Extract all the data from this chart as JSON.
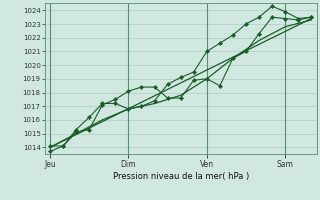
{
  "background_color": "#d0e8e0",
  "plot_bg": "#d0e8e0",
  "grid_color": "#b0ccc4",
  "grid_major_color": "#8aada0",
  "line_color": "#1a5c28",
  "ylabel": "Pression niveau de la mer( hPa )",
  "ylim": [
    1013.5,
    1024.5
  ],
  "yticks": [
    1014,
    1015,
    1016,
    1017,
    1018,
    1019,
    1020,
    1021,
    1022,
    1023,
    1024
  ],
  "xtick_labels": [
    "Jeu",
    "Dim",
    "Ven",
    "Sam"
  ],
  "xtick_positions": [
    0,
    3,
    6,
    9
  ],
  "vline_color": "#5a8a78",
  "series1": {
    "x": [
      0.0,
      0.5,
      1.0,
      1.5,
      2.0,
      2.5,
      3.0,
      3.5,
      4.0,
      4.5,
      5.0,
      5.5,
      6.0,
      6.5,
      7.0,
      7.5,
      8.0,
      8.5,
      9.0,
      9.5,
      10.0
    ],
    "y": [
      1013.7,
      1014.1,
      1015.1,
      1015.3,
      1017.1,
      1017.5,
      1018.1,
      1018.4,
      1018.4,
      1017.6,
      1017.6,
      1018.9,
      1019.0,
      1018.5,
      1020.5,
      1021.0,
      1022.3,
      1023.5,
      1023.4,
      1023.3,
      1023.5
    ]
  },
  "series2": {
    "x": [
      0.0,
      0.5,
      1.0,
      1.5,
      2.0,
      2.5,
      3.0,
      3.5,
      4.0,
      4.5,
      5.0,
      5.5,
      6.0,
      6.5,
      7.0,
      7.5,
      8.0,
      8.5,
      9.0,
      9.5,
      10.0
    ],
    "y": [
      1014.1,
      1014.1,
      1015.3,
      1016.2,
      1017.2,
      1017.2,
      1016.8,
      1017.0,
      1017.4,
      1018.6,
      1019.1,
      1019.5,
      1021.0,
      1021.6,
      1022.2,
      1023.0,
      1023.5,
      1024.3,
      1023.9,
      1023.4,
      1023.5
    ]
  },
  "series3": {
    "x": [
      0.0,
      1.0,
      2.0,
      3.0,
      4.0,
      5.0,
      6.0,
      7.0,
      8.0,
      9.0,
      10.0
    ],
    "y": [
      1014.0,
      1015.0,
      1016.0,
      1016.8,
      1017.2,
      1017.8,
      1019.0,
      1020.5,
      1021.8,
      1022.8,
      1023.3
    ]
  },
  "series4": {
    "x": [
      0.0,
      10.0
    ],
    "y": [
      1014.0,
      1023.4
    ]
  },
  "figsize": [
    3.2,
    2.0
  ],
  "dpi": 100
}
